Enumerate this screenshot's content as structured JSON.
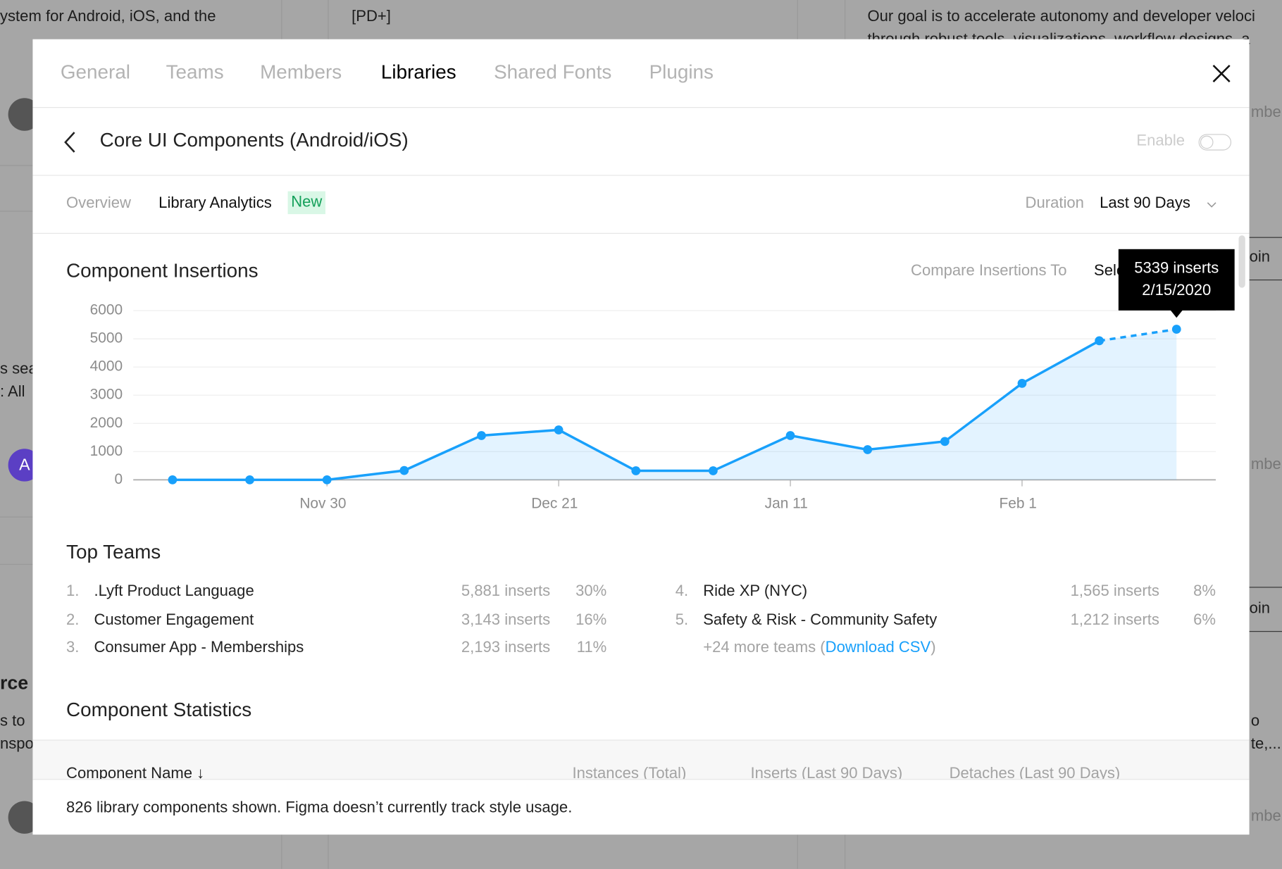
{
  "background": {
    "texts": [
      "ystem for Android, iOS, and the",
      "[PD+]",
      "Our goal is to accelerate autonomy and developer veloci",
      "through robust tools, visualizations, workflow designs, a",
      "s sea",
      ": All",
      "rce",
      "s to",
      "nspo",
      "mber",
      "oin",
      "mber",
      "oin",
      "o",
      "te,...",
      "mber"
    ],
    "avatar_letter": "A"
  },
  "tabs": [
    "General",
    "Teams",
    "Members",
    "Libraries",
    "Shared Fonts",
    "Plugins"
  ],
  "active_tab": 3,
  "header": {
    "title": "Core UI Components (Android/iOS)",
    "enable_label": "Enable"
  },
  "subtabs": {
    "overview": "Overview",
    "analytics": "Library Analytics",
    "badge": "New",
    "duration_label": "Duration",
    "duration": "Last 90 Days"
  },
  "chart_data": {
    "type": "line",
    "title": "Component Insertions",
    "compare_label": "Compare Insertions To",
    "select_label": "Select",
    "categories": [
      null,
      null,
      "Nov 30",
      null,
      null,
      "Dec 21",
      null,
      null,
      "Jan 11",
      null,
      null,
      "Feb 1",
      null,
      null
    ],
    "series": [
      {
        "name": "Inserts",
        "color": "#18a0fb",
        "values": [
          0,
          0,
          0,
          330,
          1570,
          1770,
          320,
          320,
          1570,
          1070,
          1360,
          3420,
          4930,
          5339
        ]
      }
    ],
    "ylim": [
      0,
      6000
    ],
    "yticks": [
      0,
      1000,
      2000,
      3000,
      4000,
      5000,
      6000
    ],
    "grid": true,
    "area": true,
    "dashed_last_segment": true,
    "tooltip": {
      "label": "5339 inserts",
      "date": "2/15/2020"
    }
  },
  "top_teams": {
    "title": "Top Teams",
    "teams": [
      {
        "rank": "1.",
        "name": ".Lyft Product Language",
        "inserts": "5,881 inserts",
        "share": "30%"
      },
      {
        "rank": "2.",
        "name": "Customer Engagement",
        "inserts": "3,143 inserts",
        "share": "16%"
      },
      {
        "rank": "3.",
        "name": "Consumer App - Memberships",
        "inserts": "2,193 inserts",
        "share": "11%"
      },
      {
        "rank": "4.",
        "name": "Ride XP (NYC)",
        "inserts": "1,565 inserts",
        "share": "8%"
      },
      {
        "rank": "5.",
        "name": "Safety & Risk - Community Safety",
        "inserts": "1,212 inserts",
        "share": "6%"
      }
    ],
    "more": "+24 more teams (",
    "link": "Download CSV",
    "more_end": ")"
  },
  "statistics": {
    "title": "Component Statistics",
    "columns": [
      "Component Name ↓",
      "Instances (Total)",
      "Inserts (Last 90 Days)",
      "Detaches (Last 90 Days)"
    ]
  },
  "footer": "826 library components shown. Figma doesn’t currently track style usage."
}
